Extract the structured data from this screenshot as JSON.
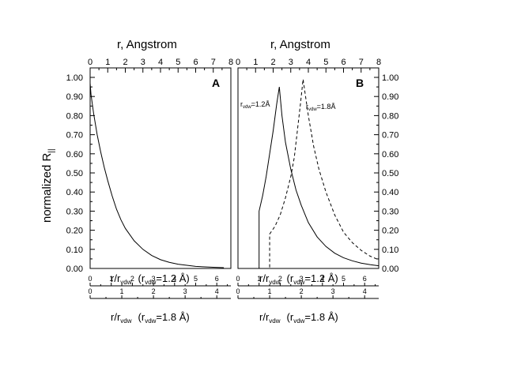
{
  "chart_data": [
    {
      "type": "line",
      "panel_label": "A",
      "top_axis": {
        "label": "r, Angstrom",
        "range": [
          0,
          8
        ],
        "ticks": [
          0,
          1,
          2,
          3,
          4,
          5,
          6,
          7,
          8
        ]
      },
      "y_axis": {
        "label": "normalized R",
        "label_sub": "||",
        "range": [
          0,
          1.0
        ],
        "ticks": [
          "0.00",
          "0.10",
          "0.20",
          "0.30",
          "0.40",
          "0.50",
          "0.60",
          "0.70",
          "0.80",
          "0.90",
          "1.00"
        ]
      },
      "bottom_axis_1": {
        "label": "r/r",
        "label_sub": "vdw",
        "note": "(r",
        "note_sub": "vdw",
        "note_end": "=1.2 Å)",
        "ticks": [
          0,
          1,
          2,
          3,
          4,
          5,
          6
        ],
        "r_per_unit": 1.2
      },
      "bottom_axis_2": {
        "label": "r/r",
        "label_sub": "vdw",
        "note": "(r",
        "note_sub": "vdw",
        "note_end": "=1.8 Å)",
        "ticks": [
          0,
          1,
          2,
          3,
          4
        ],
        "r_per_unit": 1.8
      },
      "series": [
        {
          "style": "solid",
          "x": [
            0.0,
            0.05,
            0.2,
            0.4,
            0.6,
            0.8,
            1.0,
            1.25,
            1.5,
            1.75,
            2.0,
            2.5,
            3.0,
            3.5,
            4.0,
            4.5,
            5.0,
            6.0,
            7.0,
            7.6
          ],
          "y": [
            0.97,
            0.91,
            0.81,
            0.7,
            0.61,
            0.53,
            0.46,
            0.38,
            0.31,
            0.255,
            0.21,
            0.145,
            0.1,
            0.068,
            0.046,
            0.032,
            0.022,
            0.011,
            0.006,
            0.004
          ]
        }
      ]
    },
    {
      "type": "line",
      "panel_label": "B",
      "top_axis": {
        "label": "r, Angstrom",
        "range": [
          0,
          8
        ],
        "ticks": [
          0,
          1,
          2,
          3,
          4,
          5,
          6,
          7,
          8
        ]
      },
      "y_axis": {
        "range": [
          0,
          1.0
        ],
        "ticks": [
          "0.00",
          "0.10",
          "0.20",
          "0.30",
          "0.40",
          "0.50",
          "0.60",
          "0.70",
          "0.80",
          "0.90",
          "1.00"
        ]
      },
      "bottom_axis_1": {
        "label": "r/r",
        "label_sub": "vdw",
        "note": "(r",
        "note_sub": "vdw",
        "note_end": "=1.2 Å)",
        "ticks": [
          0,
          1,
          2,
          3,
          4,
          5,
          6
        ],
        "r_per_unit": 1.2
      },
      "bottom_axis_2": {
        "label": "r/r",
        "label_sub": "vdw",
        "note": "(r",
        "note_sub": "vdw",
        "note_end": "=1.8 Å)",
        "ticks": [
          0,
          1,
          2,
          3,
          4
        ],
        "r_per_unit": 1.8
      },
      "annotations": [
        {
          "text": "r",
          "sub": "vdw",
          "end": "=1.2Å"
        },
        {
          "text": "r",
          "sub": "vdw",
          "end": "=1.8Å"
        }
      ],
      "series": [
        {
          "style": "solid",
          "x": [
            0.0,
            1.2,
            1.2,
            1.4,
            1.6,
            1.8,
            2.0,
            2.2,
            2.35,
            2.5,
            2.7,
            3.0,
            3.3,
            3.6,
            4.0,
            4.5,
            5.0,
            5.5,
            6.0,
            6.5,
            7.0,
            7.5,
            8.0
          ],
          "y": [
            0.0,
            0.0,
            0.3,
            0.38,
            0.48,
            0.6,
            0.72,
            0.86,
            0.95,
            0.8,
            0.66,
            0.52,
            0.41,
            0.33,
            0.24,
            0.165,
            0.115,
            0.08,
            0.056,
            0.04,
            0.028,
            0.02,
            0.014
          ]
        },
        {
          "style": "dashed",
          "x": [
            1.55,
            1.8,
            1.8,
            2.1,
            2.4,
            2.7,
            3.0,
            3.2,
            3.4,
            3.55,
            3.7,
            4.0,
            4.3,
            4.6,
            5.0,
            5.5,
            6.0,
            6.5,
            7.0,
            7.5,
            8.0
          ],
          "y": [
            0.0,
            0.0,
            0.18,
            0.22,
            0.28,
            0.37,
            0.48,
            0.58,
            0.74,
            0.86,
            0.99,
            0.8,
            0.64,
            0.52,
            0.4,
            0.28,
            0.19,
            0.135,
            0.095,
            0.065,
            0.045
          ]
        }
      ]
    }
  ]
}
